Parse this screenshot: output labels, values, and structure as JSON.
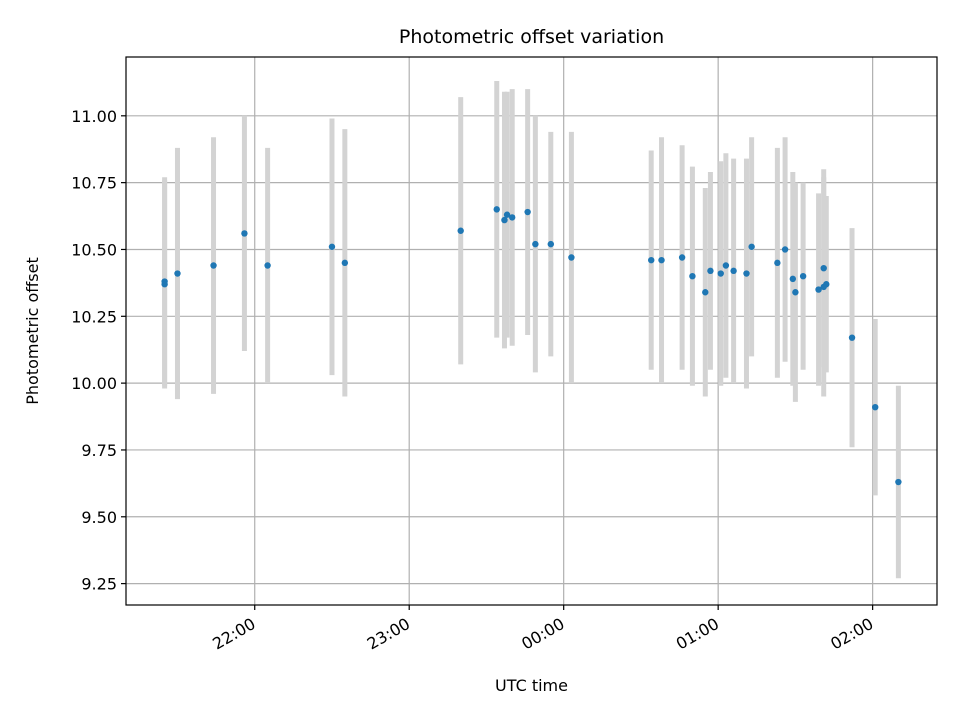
{
  "chart_data": {
    "type": "scatter",
    "title": "Photometric offset variation",
    "xlabel": "UTC time",
    "ylabel": "Photometric offset",
    "x_axis_kind": "time",
    "xlim": [
      "21:10",
      "02:25"
    ],
    "ylim": [
      9.17,
      11.22
    ],
    "x_ticks": [
      "22:00",
      "23:00",
      "00:00",
      "01:00",
      "02:00"
    ],
    "y_ticks": [
      "9.25",
      "9.50",
      "9.75",
      "10.00",
      "10.25",
      "10.50",
      "10.75",
      "11.00"
    ],
    "grid": true,
    "marker_color": "#1f77b4",
    "errorbar_color": "#d3d3d3",
    "points": [
      {
        "t": "21:25",
        "y": 10.38,
        "err": 0.39
      },
      {
        "t": "21:25",
        "y": 10.37,
        "err": 0.39
      },
      {
        "t": "21:30",
        "y": 10.41,
        "err": 0.47
      },
      {
        "t": "21:44",
        "y": 10.44,
        "err": 0.48
      },
      {
        "t": "21:56",
        "y": 10.56,
        "err": 0.44
      },
      {
        "t": "22:05",
        "y": 10.44,
        "err": 0.44
      },
      {
        "t": "22:30",
        "y": 10.51,
        "err": 0.48
      },
      {
        "t": "22:35",
        "y": 10.45,
        "err": 0.5
      },
      {
        "t": "23:20",
        "y": 10.57,
        "err": 0.5
      },
      {
        "t": "23:34",
        "y": 10.65,
        "err": 0.48
      },
      {
        "t": "23:37",
        "y": 10.61,
        "err": 0.48
      },
      {
        "t": "23:38",
        "y": 10.63,
        "err": 0.46
      },
      {
        "t": "23:40",
        "y": 10.62,
        "err": 0.48
      },
      {
        "t": "23:46",
        "y": 10.64,
        "err": 0.46
      },
      {
        "t": "23:49",
        "y": 10.52,
        "err": 0.48
      },
      {
        "t": "23:55",
        "y": 10.52,
        "err": 0.42
      },
      {
        "t": "00:03",
        "y": 10.47,
        "err": 0.47
      },
      {
        "t": "00:34",
        "y": 10.46,
        "err": 0.41
      },
      {
        "t": "00:38",
        "y": 10.46,
        "err": 0.46
      },
      {
        "t": "00:46",
        "y": 10.47,
        "err": 0.42
      },
      {
        "t": "00:50",
        "y": 10.4,
        "err": 0.41
      },
      {
        "t": "00:55",
        "y": 10.34,
        "err": 0.39
      },
      {
        "t": "00:57",
        "y": 10.42,
        "err": 0.37
      },
      {
        "t": "01:01",
        "y": 10.41,
        "err": 0.42
      },
      {
        "t": "01:03",
        "y": 10.44,
        "err": 0.42
      },
      {
        "t": "01:06",
        "y": 10.42,
        "err": 0.42
      },
      {
        "t": "01:11",
        "y": 10.41,
        "err": 0.43
      },
      {
        "t": "01:13",
        "y": 10.51,
        "err": 0.41
      },
      {
        "t": "01:23",
        "y": 10.45,
        "err": 0.43
      },
      {
        "t": "01:26",
        "y": 10.5,
        "err": 0.42
      },
      {
        "t": "01:29",
        "y": 10.39,
        "err": 0.4
      },
      {
        "t": "01:30",
        "y": 10.34,
        "err": 0.41
      },
      {
        "t": "01:33",
        "y": 10.4,
        "err": 0.35
      },
      {
        "t": "01:39",
        "y": 10.35,
        "err": 0.36
      },
      {
        "t": "01:41",
        "y": 10.43,
        "err": 0.37
      },
      {
        "t": "01:41",
        "y": 10.36,
        "err": 0.41
      },
      {
        "t": "01:42",
        "y": 10.37,
        "err": 0.33
      },
      {
        "t": "01:52",
        "y": 10.17,
        "err": 0.41
      },
      {
        "t": "02:01",
        "y": 9.91,
        "err": 0.33
      },
      {
        "t": "02:10",
        "y": 9.63,
        "err": 0.36
      }
    ]
  }
}
